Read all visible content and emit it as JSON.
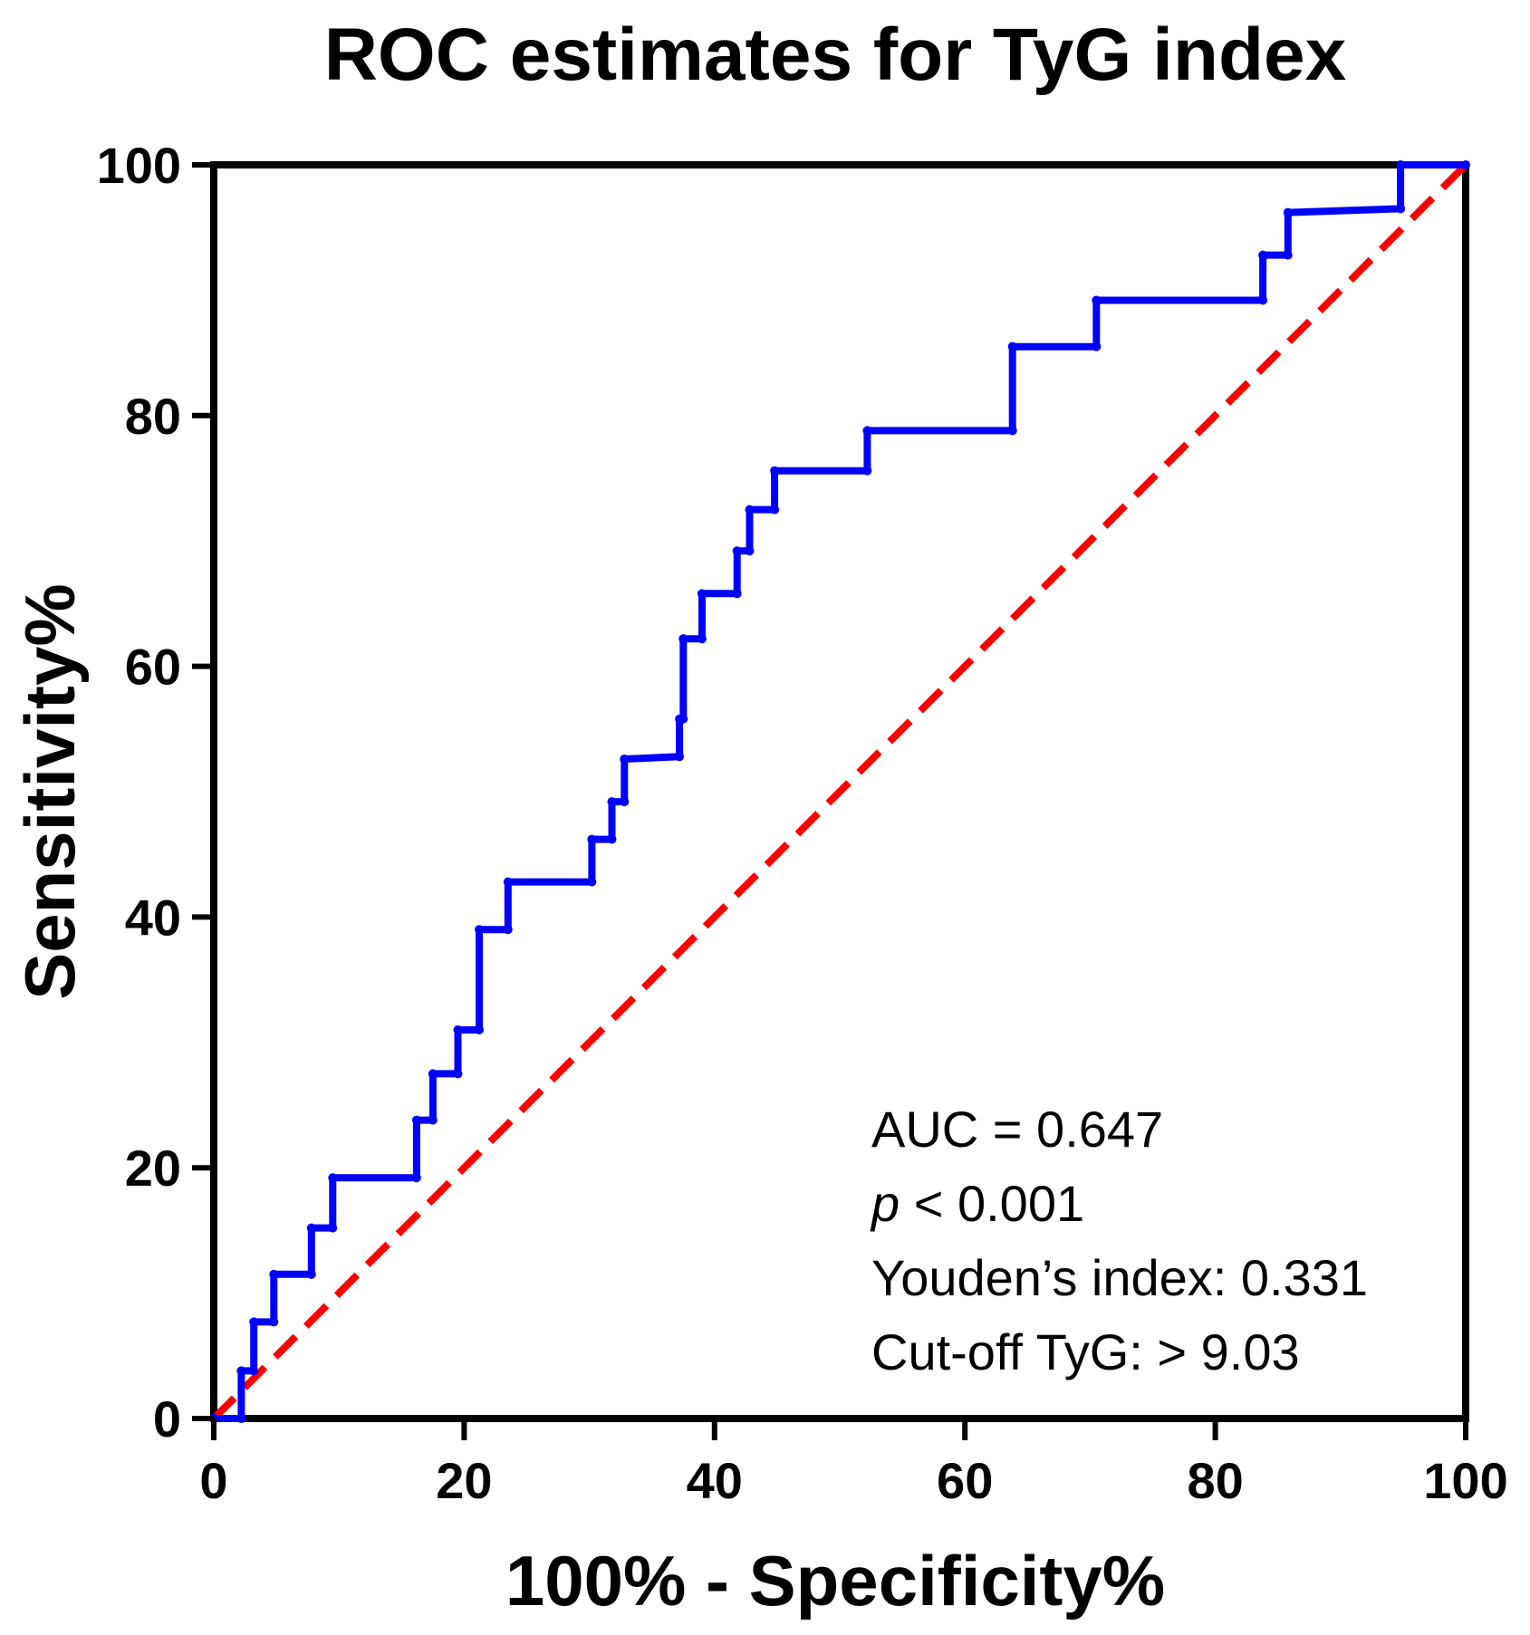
{
  "chart_data": {
    "type": "line",
    "title": "ROC estimates for TyG index",
    "xlabel": "100% - Specificity%",
    "ylabel": "Sensitivity%",
    "xlim": [
      0,
      100
    ],
    "ylim": [
      0,
      100
    ],
    "xticks": [
      0,
      20,
      40,
      60,
      80,
      100
    ],
    "yticks": [
      0,
      20,
      40,
      60,
      80,
      100
    ],
    "grid": false,
    "series": [
      {
        "name": "ROC curve",
        "color": "#0000ff",
        "style": "solid-step",
        "points": [
          [
            0,
            0
          ],
          [
            2.2,
            0
          ],
          [
            2.2,
            3.8
          ],
          [
            3.2,
            3.8
          ],
          [
            3.2,
            7.7
          ],
          [
            4.8,
            7.7
          ],
          [
            4.8,
            11.5
          ],
          [
            7.8,
            11.5
          ],
          [
            7.8,
            15.2
          ],
          [
            9.5,
            15.2
          ],
          [
            9.5,
            19.2
          ],
          [
            16.2,
            19.2
          ],
          [
            16.2,
            23.8
          ],
          [
            17.5,
            23.8
          ],
          [
            17.5,
            27.5
          ],
          [
            19.5,
            27.5
          ],
          [
            19.5,
            31.0
          ],
          [
            21.2,
            31.0
          ],
          [
            21.2,
            39.0
          ],
          [
            23.5,
            39.0
          ],
          [
            23.5,
            42.8
          ],
          [
            30.2,
            42.8
          ],
          [
            30.2,
            46.2
          ],
          [
            31.8,
            46.2
          ],
          [
            31.8,
            49.2
          ],
          [
            32.8,
            49.2
          ],
          [
            32.8,
            52.6
          ],
          [
            37.2,
            52.8
          ],
          [
            37.2,
            55.8
          ],
          [
            37.5,
            55.8
          ],
          [
            37.5,
            62.2
          ],
          [
            39.0,
            62.2
          ],
          [
            39.0,
            65.8
          ],
          [
            41.8,
            65.8
          ],
          [
            41.8,
            69.2
          ],
          [
            42.8,
            69.2
          ],
          [
            42.8,
            72.5
          ],
          [
            44.8,
            72.5
          ],
          [
            44.8,
            75.6
          ],
          [
            52.2,
            75.6
          ],
          [
            52.2,
            78.8
          ],
          [
            63.8,
            78.8
          ],
          [
            63.8,
            85.5
          ],
          [
            70.5,
            85.5
          ],
          [
            70.5,
            89.2
          ],
          [
            83.8,
            89.2
          ],
          [
            83.8,
            92.8
          ],
          [
            85.8,
            92.8
          ],
          [
            85.8,
            96.2
          ],
          [
            94.8,
            96.5
          ],
          [
            94.8,
            100
          ],
          [
            100,
            100
          ]
        ]
      },
      {
        "name": "Reference line",
        "color": "#ff0000",
        "style": "dashed",
        "points": [
          [
            0,
            0
          ],
          [
            100,
            100
          ]
        ]
      }
    ],
    "annotations": [
      {
        "text": "AUC = 0.647"
      },
      {
        "italic_prefix": "p",
        "text": " < 0.001"
      },
      {
        "text": "Youden’s index: 0.331"
      },
      {
        "text": "Cut-off TyG: > 9.03"
      }
    ]
  }
}
